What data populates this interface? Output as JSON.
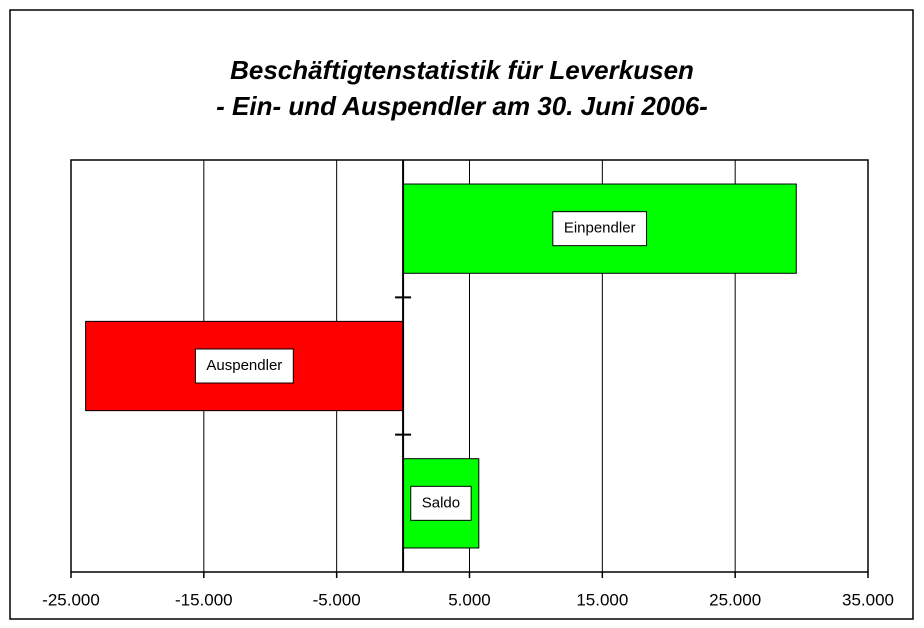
{
  "chart_data": {
    "type": "barh",
    "title": "Beschäftigtenstatistik für Leverkusen",
    "subtitle": "- Ein- und Auspendler am 30. Juni 2006-",
    "categories": [
      "Einpendler",
      "Auspendler",
      "Saldo"
    ],
    "values": [
      29600,
      -23900,
      5700
    ],
    "colors": [
      "#00ff00",
      "#ff0000",
      "#00ff00"
    ],
    "xlim": [
      -25000,
      35000
    ],
    "xticks": [
      {
        "value": -25000,
        "label": "-25.000"
      },
      {
        "value": -15000,
        "label": "-15.000"
      },
      {
        "value": -5000,
        "label": "-5.000"
      },
      {
        "value": 5000,
        "label": "5.000"
      },
      {
        "value": 15000,
        "label": "15.000"
      },
      {
        "value": 25000,
        "label": "25.000"
      },
      {
        "value": 35000,
        "label": "35.000"
      }
    ],
    "grid": true
  }
}
